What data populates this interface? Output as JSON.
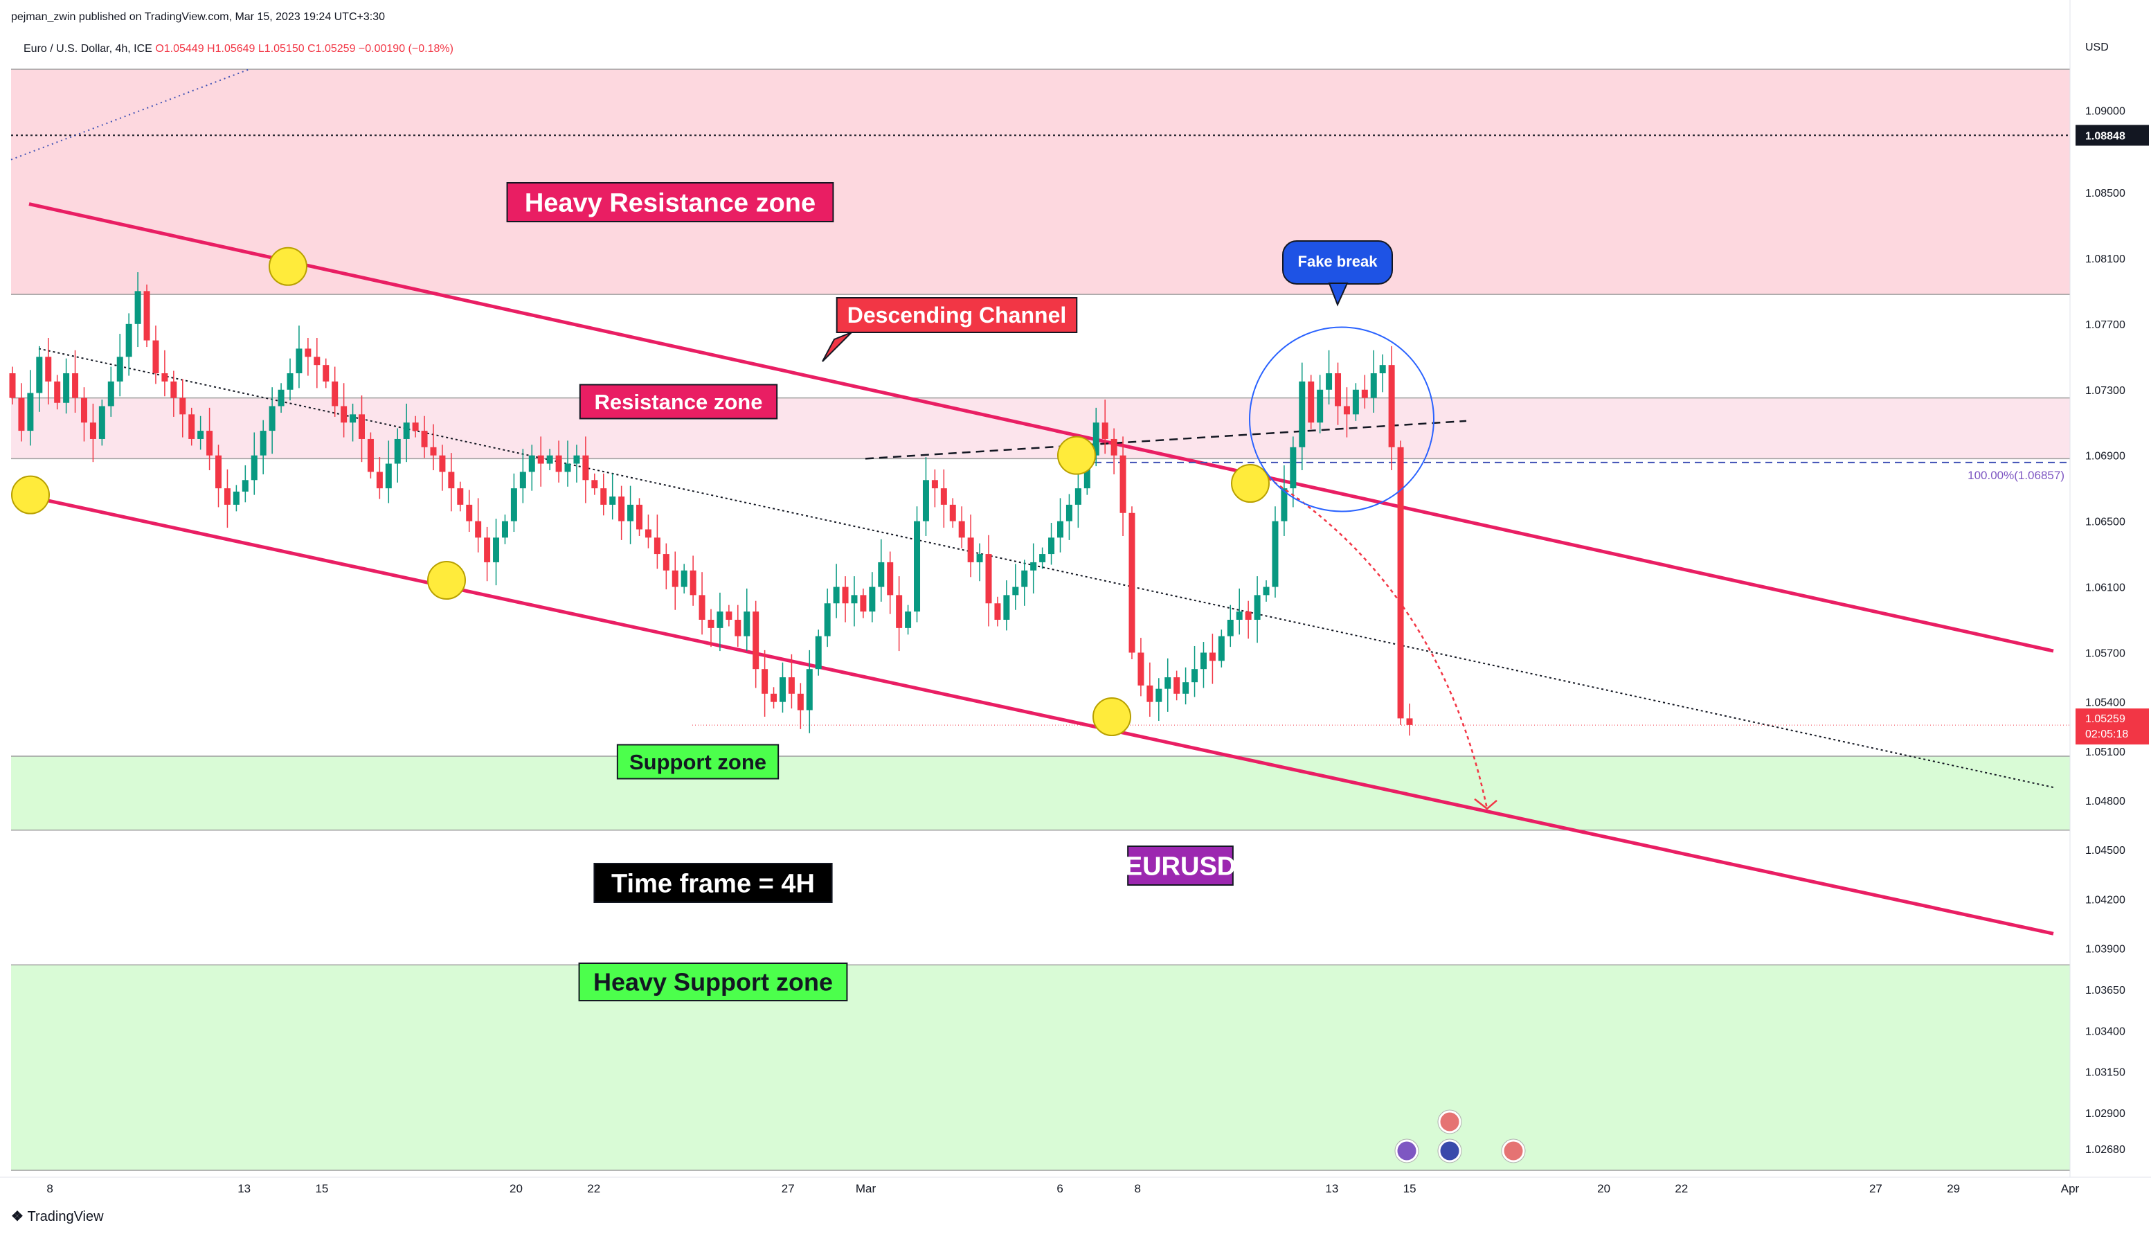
{
  "header": {
    "published": "pejman_zwin published on TradingView.com, Mar 15, 2023 19:24 UTC+3:30",
    "symbol_line": "Euro / U.S. Dollar, 4h, ICE",
    "ohlc": {
      "o": "O1.05449",
      "h": "H1.05649",
      "l": "L1.05150",
      "c": "C1.05259",
      "chg": "−0.00190 (−0.18%)"
    }
  },
  "footer": {
    "brand": "TradingView"
  },
  "colors": {
    "up": "#089981",
    "down": "#f23645",
    "channel": "#e91e63",
    "resistance": "#fce4ec",
    "heavy_resistance": "#fdd8df",
    "support": "#d9fbd6"
  },
  "chart_data": {
    "type": "candlestick",
    "symbol": "EURUSD",
    "timeframe": "4h",
    "price_axis": {
      "unit": "USD",
      "range": [
        1.0255,
        1.0925
      ],
      "ticks": [
        "1.09000",
        "1.08500",
        "1.08100",
        "1.07700",
        "1.07300",
        "1.06900",
        "1.06500",
        "1.06100",
        "1.05700",
        "1.05400",
        "1.05100",
        "1.04800",
        "1.04500",
        "1.04200",
        "1.03900",
        "1.03650",
        "1.03400",
        "1.03150",
        "1.02900",
        "1.02680"
      ],
      "last_price": "1.05259",
      "countdown": "02:05:18",
      "marked_price": "1.08848",
      "fib_label": "100.00%(1.06857)"
    },
    "time_axis": {
      "range": [
        "2023-02-07",
        "2023-04-01"
      ],
      "ticks": [
        {
          "label": "8",
          "date": "2023-02-08"
        },
        {
          "label": "13",
          "date": "2023-02-13"
        },
        {
          "label": "15",
          "date": "2023-02-15"
        },
        {
          "label": "20",
          "date": "2023-02-20"
        },
        {
          "label": "22",
          "date": "2023-02-22"
        },
        {
          "label": "27",
          "date": "2023-02-27"
        },
        {
          "label": "Mar",
          "date": "2023-03-01"
        },
        {
          "label": "6",
          "date": "2023-03-06"
        },
        {
          "label": "8",
          "date": "2023-03-08"
        },
        {
          "label": "13",
          "date": "2023-03-13"
        },
        {
          "label": "15",
          "date": "2023-03-15"
        },
        {
          "label": "20",
          "date": "2023-03-20"
        },
        {
          "label": "22",
          "date": "2023-03-22"
        },
        {
          "label": "27",
          "date": "2023-03-27"
        },
        {
          "label": "29",
          "date": "2023-03-29"
        },
        {
          "label": "Apr",
          "date": "2023-04-01"
        }
      ]
    },
    "closes": [
      1.0725,
      1.0705,
      1.0728,
      1.075,
      1.0735,
      1.0722,
      1.074,
      1.0725,
      1.071,
      1.07,
      1.072,
      1.0735,
      1.075,
      1.077,
      1.079,
      1.076,
      1.074,
      1.0735,
      1.0725,
      1.0715,
      1.07,
      1.0705,
      1.069,
      1.067,
      1.066,
      1.0668,
      1.0675,
      1.069,
      1.0705,
      1.072,
      1.073,
      1.074,
      1.0755,
      1.075,
      1.0745,
      1.0735,
      1.072,
      1.071,
      1.0715,
      1.07,
      1.068,
      1.067,
      1.0685,
      1.07,
      1.071,
      1.0705,
      1.0695,
      1.069,
      1.068,
      1.067,
      1.066,
      1.065,
      1.064,
      1.0625,
      1.064,
      1.065,
      1.067,
      1.068,
      1.069,
      1.0685,
      1.069,
      1.068,
      1.0685,
      1.069,
      1.0675,
      1.067,
      1.066,
      1.0665,
      1.065,
      1.066,
      1.0645,
      1.064,
      1.063,
      1.062,
      1.061,
      1.062,
      1.0605,
      1.059,
      1.0585,
      1.0595,
      1.059,
      1.058,
      1.0595,
      1.056,
      1.0545,
      1.054,
      1.0555,
      1.0545,
      1.0535,
      1.056,
      1.058,
      1.06,
      1.061,
      1.06,
      1.0605,
      1.0595,
      1.061,
      1.0625,
      1.0605,
      1.0585,
      1.0595,
      1.065,
      1.0675,
      1.067,
      1.066,
      1.065,
      1.064,
      1.0625,
      1.063,
      1.06,
      1.059,
      1.0605,
      1.061,
      1.062,
      1.0625,
      1.063,
      1.064,
      1.065,
      1.066,
      1.067,
      1.069,
      1.071,
      1.07,
      1.069,
      1.0655,
      1.057,
      1.055,
      1.054,
      1.0548,
      1.0555,
      1.0545,
      1.0552,
      1.056,
      1.057,
      1.0565,
      1.058,
      1.059,
      1.0595,
      1.059,
      1.0605,
      1.061,
      1.065,
      1.067,
      1.0695,
      1.0735,
      1.071,
      1.073,
      1.074,
      1.072,
      1.0715,
      1.073,
      1.0725,
      1.074,
      1.0745,
      1.0695,
      1.053,
      1.0526
    ],
    "annotations": {
      "heavy_resistance": {
        "label": "Heavy Resistance zone",
        "from": 1.0788,
        "to": 1.0925
      },
      "resistance": {
        "label": "Resistance zone",
        "from": 1.0688,
        "to": 1.0725
      },
      "support": {
        "label": "Support zone",
        "from": 1.0462,
        "to": 1.0507
      },
      "heavy_support": {
        "label": "Heavy Support zone",
        "from": 1.0255,
        "to": 1.038
      },
      "channel_label": "Descending Channel",
      "fake_break": "Fake break",
      "timeframe_label": "Time frame = 4H",
      "symbol_label": "EURUSD"
    }
  }
}
